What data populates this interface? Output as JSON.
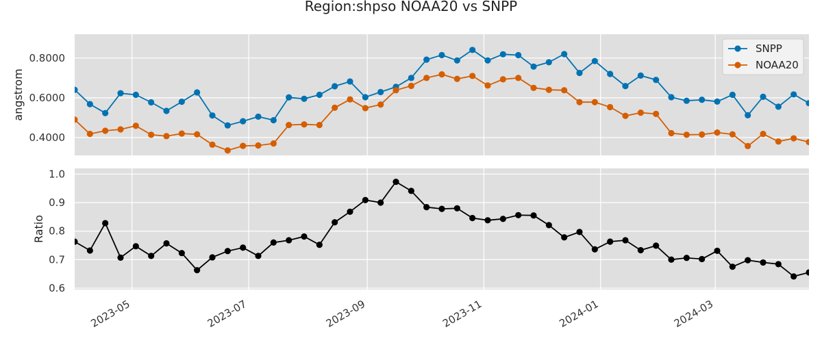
{
  "figure": {
    "title": "Region:shpso NOAA20 vs SNPP"
  },
  "chart_data": [
    {
      "type": "line",
      "ylabel": "angstrom",
      "ylim": [
        0.31,
        0.92
      ],
      "yticks": [
        0.4,
        0.6,
        0.8
      ],
      "ytick_labels": [
        "0.4000",
        "0.6000",
        "0.8000"
      ],
      "grid": true,
      "legend_position": "top-right",
      "x": [
        "2023-04-01",
        "2023-04-09",
        "2023-04-17",
        "2023-04-25",
        "2023-05-03",
        "2023-05-11",
        "2023-05-19",
        "2023-05-27",
        "2023-06-04",
        "2023-06-12",
        "2023-06-20",
        "2023-06-28",
        "2023-07-06",
        "2023-07-14",
        "2023-07-22",
        "2023-07-30",
        "2023-08-07",
        "2023-08-15",
        "2023-08-23",
        "2023-08-31",
        "2023-09-08",
        "2023-09-16",
        "2023-09-24",
        "2023-10-02",
        "2023-10-10",
        "2023-10-18",
        "2023-10-26",
        "2023-11-03",
        "2023-11-11",
        "2023-11-19",
        "2023-11-27",
        "2023-12-05",
        "2023-12-13",
        "2023-12-21",
        "2023-12-29",
        "2024-01-06",
        "2024-01-14",
        "2024-01-22",
        "2024-01-30",
        "2024-02-07",
        "2024-02-15",
        "2024-02-23",
        "2024-03-02",
        "2024-03-10",
        "2024-03-18",
        "2024-03-26",
        "2024-04-03",
        "2024-04-11",
        "2024-04-19"
      ],
      "series": [
        {
          "name": "SNPP",
          "color": "#0072B2",
          "values": [
            0.64,
            0.568,
            0.523,
            0.623,
            0.615,
            0.577,
            0.534,
            0.58,
            0.627,
            0.511,
            0.461,
            0.482,
            0.505,
            0.487,
            0.602,
            0.595,
            0.615,
            0.658,
            0.682,
            0.603,
            0.629,
            0.655,
            0.7,
            0.792,
            0.815,
            0.788,
            0.841,
            0.788,
            0.819,
            0.815,
            0.757,
            0.779,
            0.82,
            0.725,
            0.785,
            0.72,
            0.659,
            0.712,
            0.69,
            0.603,
            0.585,
            0.59,
            0.581,
            0.615,
            0.512,
            0.605,
            0.555,
            0.617,
            0.573
          ]
        },
        {
          "name": "NOAA20",
          "color": "#D55E00",
          "values": [
            0.49,
            0.418,
            0.434,
            0.441,
            0.459,
            0.414,
            0.407,
            0.42,
            0.416,
            0.364,
            0.335,
            0.358,
            0.36,
            0.37,
            0.463,
            0.466,
            0.463,
            0.55,
            0.592,
            0.548,
            0.566,
            0.638,
            0.66,
            0.7,
            0.718,
            0.695,
            0.71,
            0.662,
            0.693,
            0.7,
            0.65,
            0.64,
            0.638,
            0.578,
            0.578,
            0.553,
            0.509,
            0.525,
            0.519,
            0.422,
            0.414,
            0.415,
            0.425,
            0.416,
            0.357,
            0.418,
            0.38,
            0.396,
            0.377
          ]
        }
      ]
    },
    {
      "type": "line",
      "ylabel": "Ratio",
      "ylim": [
        0.595,
        1.02
      ],
      "yticks": [
        0.6,
        0.7,
        0.8,
        0.9,
        1.0
      ],
      "ytick_labels": [
        "0.6",
        "0.7",
        "0.8",
        "0.9",
        "1.0"
      ],
      "xticks": [
        "2023-05-01",
        "2023-07-01",
        "2023-09-01",
        "2023-11-01",
        "2024-01-01",
        "2024-03-01"
      ],
      "xtick_labels": [
        "2023-05",
        "2023-07",
        "2023-09",
        "2023-11",
        "2024-01",
        "2024-03"
      ],
      "grid": true,
      "series": [
        {
          "color": "#000000",
          "values": [
            0.763,
            0.732,
            0.828,
            0.707,
            0.747,
            0.713,
            0.757,
            0.723,
            0.663,
            0.708,
            0.73,
            0.742,
            0.713,
            0.76,
            0.768,
            0.781,
            0.752,
            0.831,
            0.868,
            0.909,
            0.9,
            0.973,
            0.941,
            0.884,
            0.878,
            0.88,
            0.846,
            0.838,
            0.843,
            0.856,
            0.855,
            0.821,
            0.778,
            0.797,
            0.736,
            0.763,
            0.768,
            0.733,
            0.749,
            0.7,
            0.706,
            0.702,
            0.731,
            0.675,
            0.698,
            0.69,
            0.684,
            0.641,
            0.655
          ]
        }
      ]
    }
  ]
}
